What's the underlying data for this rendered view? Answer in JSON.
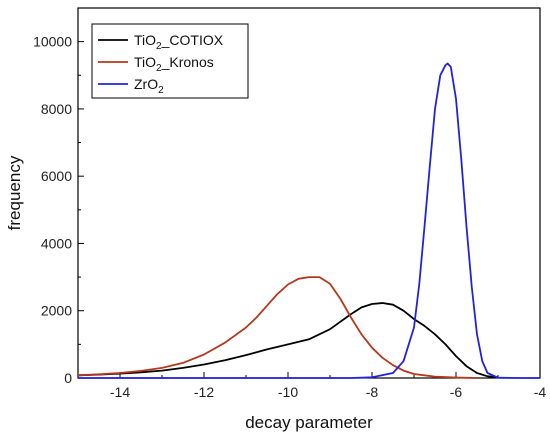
{
  "chart_data": {
    "type": "line",
    "xlabel": "decay parameter",
    "ylabel": "frequency",
    "xlim": [
      -15,
      -4
    ],
    "ylim": [
      0,
      11000
    ],
    "xticks": [
      -14,
      -12,
      -10,
      -8,
      -6,
      -4
    ],
    "yticks": [
      0,
      2000,
      4000,
      6000,
      8000,
      10000
    ],
    "grid": false,
    "legend_position": "top-left",
    "series": [
      {
        "name": "TiO2_COTIOX",
        "label_base": "TiO",
        "label_sub": "2",
        "label_tail": "_COTIOX",
        "color": "#000000",
        "x": [
          -15,
          -14.5,
          -14,
          -13.5,
          -13,
          -12.5,
          -12,
          -11.5,
          -11,
          -10.5,
          -10,
          -9.5,
          -9,
          -8.5,
          -8.25,
          -8,
          -7.75,
          -7.5,
          -7.25,
          -7,
          -6.75,
          -6.5,
          -6.25,
          -6,
          -5.75,
          -5.5,
          -5.25,
          -5
        ],
        "y": [
          80,
          100,
          130,
          170,
          220,
          300,
          400,
          530,
          680,
          850,
          1000,
          1150,
          1450,
          1900,
          2100,
          2200,
          2230,
          2180,
          2000,
          1750,
          1550,
          1300,
          1000,
          650,
          350,
          150,
          50,
          20
        ]
      },
      {
        "name": "TiO2_Kronos",
        "label_base": "TiO",
        "label_sub": "2",
        "label_tail": "_Kronos",
        "color": "#b5381c",
        "x": [
          -15,
          -14.5,
          -14,
          -13.5,
          -13,
          -12.5,
          -12,
          -11.5,
          -11,
          -10.75,
          -10.5,
          -10.25,
          -10,
          -9.75,
          -9.5,
          -9.25,
          -9,
          -8.75,
          -8.5,
          -8.25,
          -8,
          -7.75,
          -7.5,
          -7.25,
          -7,
          -6.5,
          -6,
          -5.5
        ],
        "y": [
          80,
          110,
          150,
          210,
          300,
          450,
          700,
          1050,
          1500,
          1800,
          2150,
          2500,
          2780,
          2950,
          3000,
          3000,
          2800,
          2350,
          1800,
          1300,
          900,
          600,
          380,
          220,
          120,
          40,
          15,
          0
        ]
      },
      {
        "name": "ZrO2",
        "label_base": "ZrO",
        "label_sub": "2",
        "label_tail": "",
        "color": "#2222dd",
        "x": [
          -15,
          -8.5,
          -8,
          -7.5,
          -7.25,
          -7,
          -6.875,
          -6.75,
          -6.625,
          -6.5,
          -6.375,
          -6.25,
          -6.2,
          -6.125,
          -6,
          -5.875,
          -5.75,
          -5.625,
          -5.5,
          -5.375,
          -5.25,
          -5,
          -4.5,
          -4
        ],
        "y": [
          0,
          0,
          20,
          150,
          500,
          1500,
          2800,
          4500,
          6300,
          8000,
          9000,
          9300,
          9350,
          9250,
          8300,
          6500,
          4500,
          2700,
          1300,
          500,
          150,
          10,
          0,
          0
        ]
      }
    ]
  }
}
